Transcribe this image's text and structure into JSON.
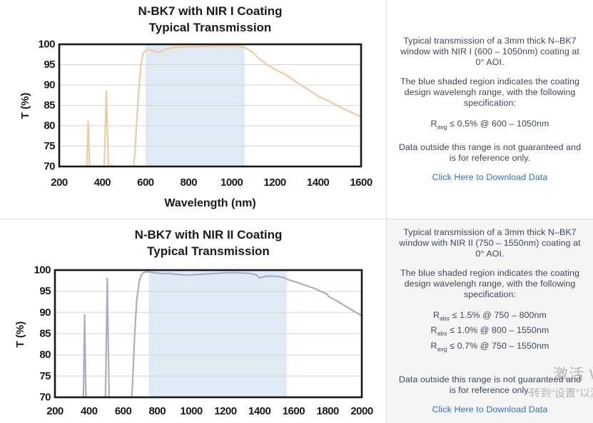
{
  "panels": [
    {
      "para1": "Typical transmission of a 3mm thick N–BK7 window with NIR I (600 – 1050nm) coating at 0° AOI.",
      "para2": "The blue shaded region indicates the coating design wavelengh range, with the following specification:",
      "specs": [
        {
          "base": "R",
          "sub": "avg",
          "rest": " ≤ 0.5% @ 600 – 1050nm"
        }
      ],
      "para3": "Data outside this range is not guaranteed and is for reference only.",
      "link": "Click Here to Download Data"
    },
    {
      "para1": "Typical transmission of a 3mm thick N–BK7 window with NIR II (750 – 1550nm) coating at 0° AOI.",
      "para2": "The blue shaded region indicates the coating design wavelengh range, with the following specification:",
      "specs": [
        {
          "base": "R",
          "sub": "abs",
          "rest": " ≤ 1.5% @ 750 – 800nm"
        },
        {
          "base": "R",
          "sub": "abs",
          "rest": " ≤ 1.0% @ 800 – 1550nm"
        },
        {
          "base": "R",
          "sub": "avg",
          "rest": " ≤ 0.7% @ 750 – 1550nm"
        }
      ],
      "para3": "Data outside this range is not guaranteed and is for reference only.",
      "link": "Click Here to Download Data"
    }
  ],
  "watermark": {
    "line1": "激活 Windows",
    "line2": "转到“设置”以激活 Windows。"
  },
  "colors": {
    "curve_nir1": "#f3c9a0",
    "curve_nir2": "#a9aec5",
    "shade": "#dfeaf5",
    "grid": "#d6d6d6",
    "axis": "#1a1a1a",
    "panel_text": "#3d4654",
    "link": "#2d6fd2",
    "panel2_bg": "#f5f5f6",
    "divider": "#e2e2e2"
  },
  "chart_data": [
    {
      "type": "line",
      "title": "N-BK7 with NIR I Coating",
      "subtitle": "Typical Transmission",
      "xlabel": "Wavelength (nm)",
      "ylabel": "T (%)",
      "xlim": [
        200,
        1600
      ],
      "ylim": [
        70,
        100
      ],
      "xtick_step": 200,
      "ytick_step": 5,
      "grid": true,
      "legend": "none",
      "shaded_region": [
        600,
        1060
      ],
      "shade_meaning": "coating design wavelength range 600 - 1050nm",
      "series": [
        {
          "name": "transmission",
          "points": [
            [
              300,
              64
            ],
            [
              322,
              64
            ],
            [
              328,
              71
            ],
            [
              334,
              81
            ],
            [
              340,
              71
            ],
            [
              346,
              64
            ],
            [
              402,
              64
            ],
            [
              410,
              72
            ],
            [
              418,
              88.5
            ],
            [
              426,
              74
            ],
            [
              432,
              64
            ],
            [
              438,
              64
            ],
            [
              443,
              70.5
            ],
            [
              448,
              64
            ],
            [
              535,
              64
            ],
            [
              552,
              74
            ],
            [
              565,
              86
            ],
            [
              578,
              94.5
            ],
            [
              590,
              97.9
            ],
            [
              602,
              98.6
            ],
            [
              625,
              98.6
            ],
            [
              650,
              98.1
            ],
            [
              672,
              98.2
            ],
            [
              700,
              98.9
            ],
            [
              735,
              99.25
            ],
            [
              780,
              99.35
            ],
            [
              830,
              99.4
            ],
            [
              880,
              99.5
            ],
            [
              930,
              99.6
            ],
            [
              965,
              99.65
            ],
            [
              1000,
              99.6
            ],
            [
              1035,
              99.5
            ],
            [
              1060,
              99.2
            ],
            [
              1090,
              98.3
            ],
            [
              1125,
              96.6
            ],
            [
              1160,
              95.1
            ],
            [
              1200,
              93.9
            ],
            [
              1245,
              92.7
            ],
            [
              1285,
              91.3
            ],
            [
              1320,
              90
            ],
            [
              1360,
              88.7
            ],
            [
              1395,
              87.5
            ],
            [
              1405,
              87.1
            ],
            [
              1420,
              86.8
            ],
            [
              1460,
              85.8
            ],
            [
              1500,
              84.7
            ],
            [
              1550,
              83.4
            ],
            [
              1600,
              82.2
            ]
          ]
        }
      ]
    },
    {
      "type": "line",
      "title": "N-BK7 with NIR II Coating",
      "subtitle": "Typical Transmission",
      "xlabel": "",
      "ylabel": "T (%)",
      "xlim": [
        200,
        2000
      ],
      "ylim": [
        70,
        100
      ],
      "xtick_step": 200,
      "ytick_step": 5,
      "grid": true,
      "legend": "none",
      "shaded_region": [
        750,
        1560
      ],
      "shade_meaning": "coating design wavelength range 750 - 1550nm",
      "series": [
        {
          "name": "transmission",
          "points": [
            [
              340,
              64
            ],
            [
              362,
              64
            ],
            [
              368,
              73
            ],
            [
              374,
              89.5
            ],
            [
              380,
              73
            ],
            [
              386,
              64
            ],
            [
              494,
              64
            ],
            [
              500,
              80
            ],
            [
              507,
              98
            ],
            [
              514,
              80
            ],
            [
              520,
              64
            ],
            [
              640,
              64
            ],
            [
              655,
              73
            ],
            [
              668,
              85
            ],
            [
              680,
              93
            ],
            [
              695,
              97.5
            ],
            [
              708,
              99
            ],
            [
              722,
              99.5
            ],
            [
              750,
              99.6
            ],
            [
              790,
              99.35
            ],
            [
              830,
              99.15
            ],
            [
              870,
              99.2
            ],
            [
              910,
              99.0
            ],
            [
              955,
              98.85
            ],
            [
              1000,
              98.85
            ],
            [
              1060,
              99.0
            ],
            [
              1120,
              99.15
            ],
            [
              1180,
              99.3
            ],
            [
              1240,
              99.4
            ],
            [
              1300,
              99.3
            ],
            [
              1345,
              99.2
            ],
            [
              1380,
              98.9
            ],
            [
              1398,
              98.2
            ],
            [
              1412,
              98.25
            ],
            [
              1430,
              98.5
            ],
            [
              1465,
              98.6
            ],
            [
              1510,
              98.5
            ],
            [
              1545,
              98.2
            ],
            [
              1570,
              97.7
            ],
            [
              1620,
              97.1
            ],
            [
              1670,
              96.4
            ],
            [
              1720,
              95.7
            ],
            [
              1770,
              94.8
            ],
            [
              1795,
              94.4
            ],
            [
              1805,
              93.8
            ],
            [
              1850,
              92.8
            ],
            [
              1900,
              91.6
            ],
            [
              1950,
              90.4
            ],
            [
              2000,
              89.2
            ]
          ]
        }
      ]
    }
  ]
}
